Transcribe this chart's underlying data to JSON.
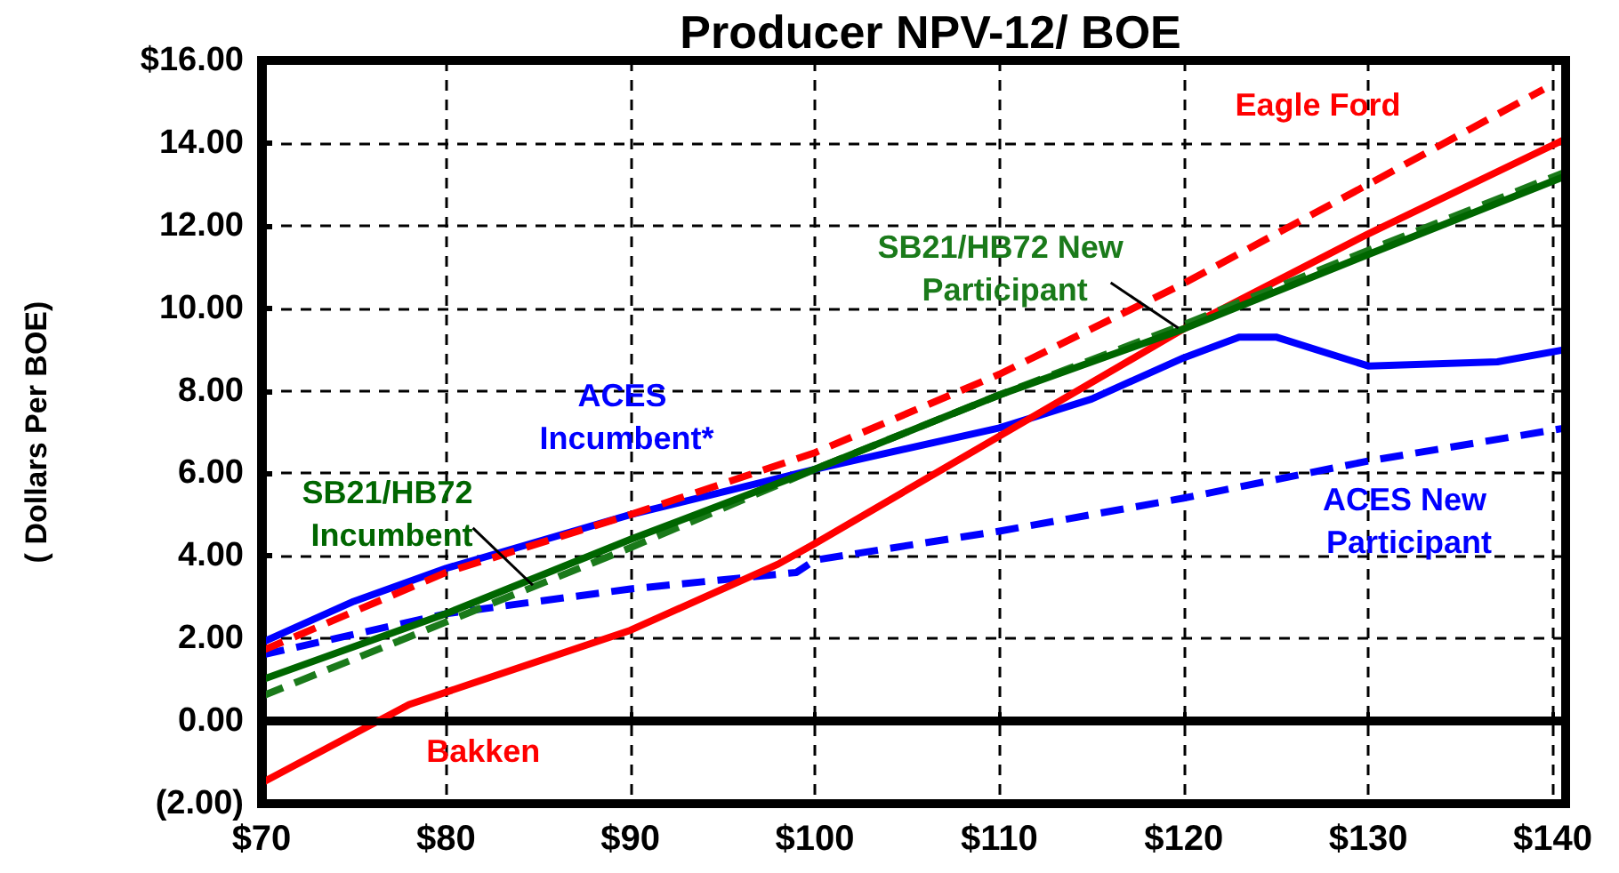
{
  "chart_data": {
    "type": "line",
    "title": "Producer NPV-12/ BOE",
    "ylabel": "( Dollars Per BOE)",
    "xlim": [
      70,
      140.7
    ],
    "ylim": [
      -2,
      16
    ],
    "xticks": [
      {
        "value": 70,
        "label": "$70"
      },
      {
        "value": 80,
        "label": "$80"
      },
      {
        "value": 90,
        "label": "$90"
      },
      {
        "value": 100,
        "label": "$100"
      },
      {
        "value": 110,
        "label": "$110"
      },
      {
        "value": 120,
        "label": "$120"
      },
      {
        "value": 130,
        "label": "$130"
      },
      {
        "value": 140,
        "label": "$140"
      }
    ],
    "yticks": [
      {
        "value": -2,
        "label": "(2.00)"
      },
      {
        "value": 0,
        "label": "0.00"
      },
      {
        "value": 2,
        "label": "2.00"
      },
      {
        "value": 4,
        "label": "4.00"
      },
      {
        "value": 6,
        "label": "6.00"
      },
      {
        "value": 8,
        "label": "8.00"
      },
      {
        "value": 10,
        "label": "10.00"
      },
      {
        "value": 12,
        "label": "12.00"
      },
      {
        "value": 14,
        "label": "14.00"
      },
      {
        "value": 16,
        "label": "$16.00"
      }
    ],
    "grid": true,
    "marker": "none",
    "ref_lines": [
      {
        "axis": "y",
        "value": 0,
        "color": "#000000",
        "line_style": "solid"
      }
    ],
    "series": [
      {
        "name": "ACES New Participant",
        "color": "#0000ff",
        "line_style": "dashed",
        "x": [
          70,
          80,
          90,
          99,
          100,
          110,
          120,
          130,
          140.7
        ],
        "values": [
          1.6,
          2.6,
          3.2,
          3.6,
          3.9,
          4.6,
          5.4,
          6.3,
          7.1
        ]
      },
      {
        "name": "ACES Incumbent*",
        "color": "#0000ff",
        "line_style": "solid",
        "x": [
          70,
          75,
          80,
          90,
          100,
          110,
          115,
          120,
          123,
          125,
          130,
          137,
          140.7
        ],
        "values": [
          1.9,
          2.9,
          3.7,
          5.0,
          6.1,
          7.1,
          7.8,
          8.8,
          9.3,
          9.3,
          8.6,
          8.7,
          9.0
        ]
      },
      {
        "name": "Eagle Ford",
        "color": "#ff0000",
        "line_style": "dashed",
        "x": [
          70,
          80,
          90,
          100,
          110,
          120,
          130,
          139.5
        ],
        "values": [
          1.7,
          3.6,
          5.0,
          6.5,
          8.4,
          10.6,
          13.0,
          15.3
        ]
      },
      {
        "name": "Bakken",
        "color": "#ff0000",
        "line_style": "solid",
        "x": [
          70,
          78,
          90,
          98,
          100,
          110,
          120,
          130,
          140.7
        ],
        "values": [
          -1.5,
          0.4,
          2.2,
          3.8,
          4.3,
          6.9,
          9.5,
          11.8,
          14.1
        ]
      },
      {
        "name": "SB21/HB72 New Participant",
        "color": "#1a7a1a",
        "line_style": "dashed",
        "x": [
          70,
          75,
          80,
          90,
          100,
          110,
          120,
          130,
          140.7
        ],
        "values": [
          0.6,
          1.5,
          2.4,
          4.2,
          6.1,
          7.9,
          9.6,
          11.4,
          13.3
        ]
      },
      {
        "name": "SB21/HB72 Incumbent",
        "color": "#006600",
        "line_style": "solid",
        "x": [
          70,
          80,
          90,
          100,
          110,
          120,
          130,
          140.7
        ],
        "values": [
          1.0,
          2.6,
          4.4,
          6.1,
          7.9,
          9.5,
          11.3,
          13.2
        ]
      }
    ]
  }
}
